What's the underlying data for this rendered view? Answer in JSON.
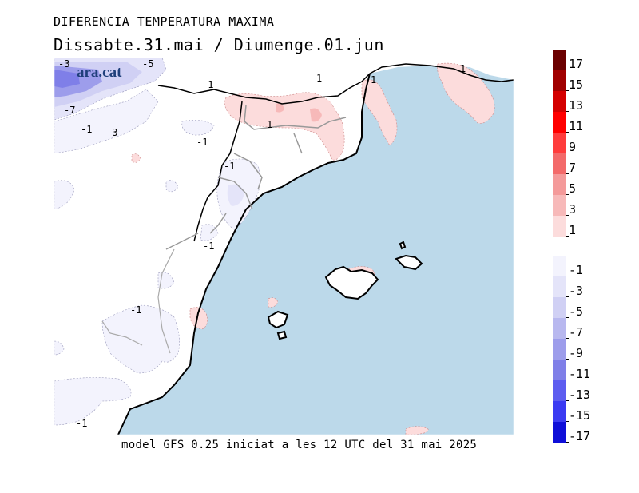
{
  "header": {
    "title": "DIFERENCIA TEMPERATURA MAXIMA",
    "subtitle": "Dissabte.31.mai / Diumenge.01.jun"
  },
  "footer": {
    "text": "model GFS 0.25 iniciat a les 12 UTC del 31 mai 2025"
  },
  "logo": {
    "text": "ara.cat"
  },
  "map": {
    "sea_color": "#bcd9ea",
    "contour_labels": [
      "-3",
      "-5",
      "-1",
      "1",
      "1",
      "-7",
      "-1",
      "-3",
      "-1",
      "1",
      "-1",
      "1",
      "-1",
      "-1",
      "-1"
    ]
  },
  "legend": {
    "positive": {
      "labels": [
        "17",
        "15",
        "13",
        "11",
        "9",
        "7",
        "5",
        "3",
        "1"
      ],
      "colors": [
        "#6b0000",
        "#a10000",
        "#d40000",
        "#ff0000",
        "#ff3c3c",
        "#f36a6a",
        "#f49a9a",
        "#f7b9b9",
        "#fcdcdc"
      ]
    },
    "negative": {
      "labels": [
        "-1",
        "-3",
        "-5",
        "-7",
        "-9",
        "-11",
        "-13",
        "-15",
        "-17"
      ],
      "colors": [
        "#f3f3fd",
        "#e4e4f9",
        "#d0d0f4",
        "#b8b8ef",
        "#9d9deb",
        "#7f7fe8",
        "#5d5df0",
        "#3b3bf2",
        "#0f0fd8"
      ]
    }
  }
}
